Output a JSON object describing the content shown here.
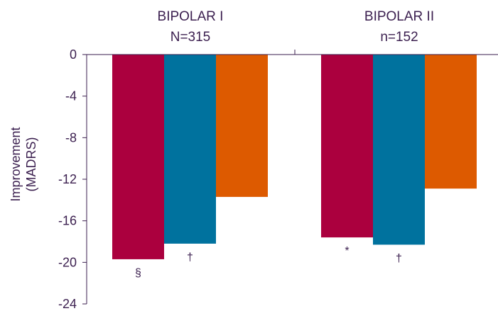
{
  "chart_data": {
    "type": "bar",
    "title": "",
    "xlabel": "",
    "ylabel_lines": [
      "Improvement",
      "(MADRS)"
    ],
    "ylim": [
      -24,
      0
    ],
    "yticks": [
      "0",
      "-4",
      "-8",
      "-12",
      "-16",
      "-20",
      "-24"
    ],
    "ytick_values": [
      0,
      -4,
      -8,
      -12,
      -16,
      -20,
      -24
    ],
    "groups": [
      {
        "label_lines": [
          "BIPOLAR I",
          "N=315"
        ],
        "values": [
          -19.7,
          -18.2,
          -13.7
        ],
        "annotations": [
          "§",
          "†",
          ""
        ]
      },
      {
        "label_lines": [
          "BIPOLAR II",
          "n=152"
        ],
        "values": [
          -17.6,
          -18.3,
          -12.9
        ],
        "annotations": [
          "*",
          "†",
          ""
        ]
      }
    ],
    "series_colors": [
      "#ab003e",
      "#00729e",
      "#dd5a00"
    ],
    "axis_color": "#3b1f4f",
    "grid": false,
    "legend": "none"
  }
}
